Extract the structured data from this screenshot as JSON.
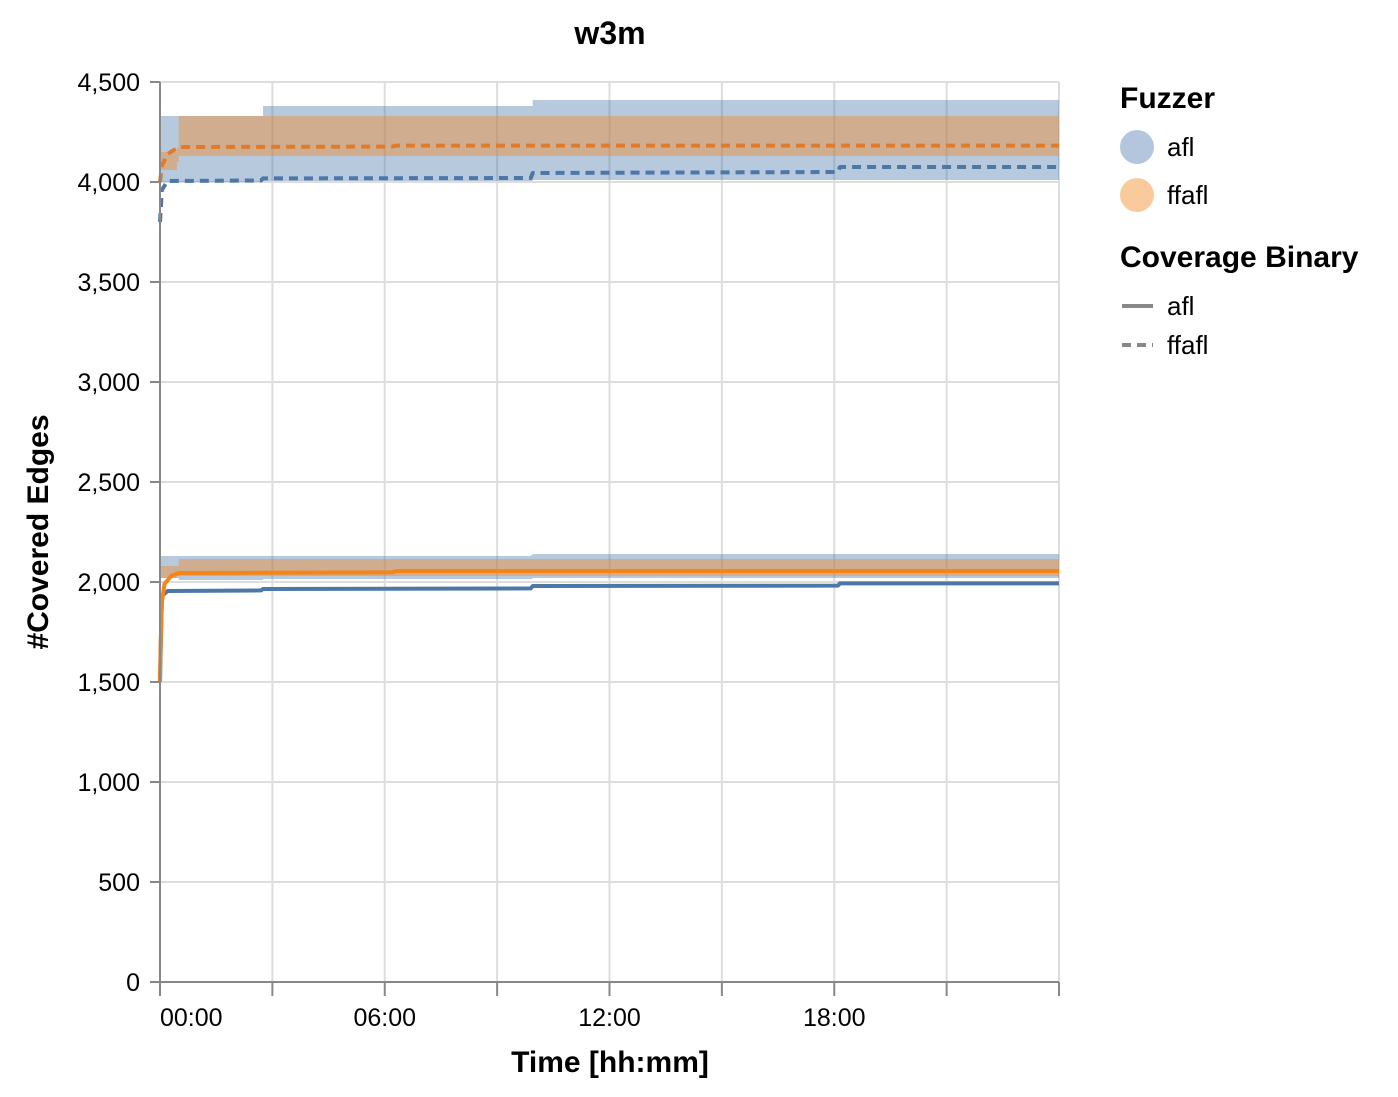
{
  "chart_data": {
    "type": "line",
    "title": "w3m",
    "xlabel": "Time [hh:mm]",
    "ylabel": "#Covered Edges",
    "x_unit": "hours",
    "xlim": [
      0,
      24
    ],
    "ylim": [
      0,
      4500
    ],
    "x_ticks": [
      {
        "value": 0,
        "label": "00:00"
      },
      {
        "value": 6,
        "label": "06:00"
      },
      {
        "value": 12,
        "label": "12:00"
      },
      {
        "value": 18,
        "label": "18:00"
      }
    ],
    "x_minor_ticks": [
      3,
      9,
      15,
      21
    ],
    "y_ticks": [
      {
        "value": 0,
        "label": "0"
      },
      {
        "value": 500,
        "label": "500"
      },
      {
        "value": 1000,
        "label": "1,000"
      },
      {
        "value": 1500,
        "label": "1,500"
      },
      {
        "value": 2000,
        "label": "2,000"
      },
      {
        "value": 2500,
        "label": "2,500"
      },
      {
        "value": 3000,
        "label": "3,000"
      },
      {
        "value": 3500,
        "label": "3,500"
      },
      {
        "value": 4000,
        "label": "4,000"
      },
      {
        "value": 4500,
        "label": "4,500"
      }
    ],
    "grid": true,
    "legend_position": "right",
    "legend": {
      "fuzzer_title": "Fuzzer",
      "fuzzer_items": [
        {
          "label": "afl",
          "color": "#b3c6dd"
        },
        {
          "label": "ffafl",
          "color": "#f9cb9c"
        }
      ],
      "binary_title": "Coverage Binary",
      "binary_items": [
        {
          "label": "afl",
          "dash": "solid"
        },
        {
          "label": "ffafl",
          "dash": "dashed"
        }
      ]
    },
    "series": [
      {
        "fuzzer": "afl",
        "binary": "afl",
        "line_color": "#4c78a8",
        "band_color": "#4c78a8",
        "points": [
          [
            0,
            1500
          ],
          [
            0.05,
            1930
          ],
          [
            0.2,
            1955
          ],
          [
            2.7,
            1958
          ],
          [
            2.75,
            1965
          ],
          [
            9.9,
            1968
          ],
          [
            9.95,
            1980
          ],
          [
            18.1,
            1982
          ],
          [
            18.15,
            1993
          ],
          [
            24,
            1993
          ]
        ],
        "band": [
          [
            0,
            2020,
            2130
          ],
          [
            0.5,
            2010,
            2130
          ],
          [
            2.7,
            2010,
            2130
          ],
          [
            2.75,
            2015,
            2130
          ],
          [
            9.9,
            2015,
            2135
          ],
          [
            9.95,
            2020,
            2140
          ],
          [
            24,
            2020,
            2145
          ]
        ]
      },
      {
        "fuzzer": "ffafl",
        "binary": "afl",
        "line_color": "#f58518",
        "band_color": "#f58518",
        "points": [
          [
            0,
            1500
          ],
          [
            0.02,
            1700
          ],
          [
            0.05,
            1900
          ],
          [
            0.12,
            1990
          ],
          [
            0.3,
            2030
          ],
          [
            0.5,
            2045
          ],
          [
            6.2,
            2048
          ],
          [
            6.3,
            2055
          ],
          [
            24,
            2055
          ]
        ],
        "band": [
          [
            0,
            2020,
            2080
          ],
          [
            0.45,
            2030,
            2080
          ],
          [
            0.5,
            2030,
            2115
          ],
          [
            24,
            2030,
            2115
          ]
        ]
      },
      {
        "fuzzer": "afl",
        "binary": "ffafl",
        "line_color": "#4c78a8",
        "band_color": "#4c78a8",
        "points": [
          [
            0,
            3800
          ],
          [
            0.05,
            3960
          ],
          [
            0.2,
            4005
          ],
          [
            2.7,
            4008
          ],
          [
            2.75,
            4018
          ],
          [
            9.9,
            4020
          ],
          [
            9.95,
            4045
          ],
          [
            18.1,
            4050
          ],
          [
            18.15,
            4075
          ],
          [
            24,
            4075
          ]
        ],
        "band": [
          [
            0,
            4000,
            4330
          ],
          [
            0.5,
            4000,
            4330
          ],
          [
            2.7,
            4000,
            4330
          ],
          [
            2.75,
            4005,
            4380
          ],
          [
            9.9,
            4005,
            4380
          ],
          [
            9.95,
            4010,
            4410
          ],
          [
            24,
            4010,
            4420
          ]
        ]
      },
      {
        "fuzzer": "ffafl",
        "binary": "ffafl",
        "line_color": "#e07b2c",
        "band_color": "#f58518",
        "points": [
          [
            0,
            4000
          ],
          [
            0.05,
            4080
          ],
          [
            0.2,
            4140
          ],
          [
            0.5,
            4175
          ],
          [
            6.2,
            4177
          ],
          [
            6.3,
            4182
          ],
          [
            24,
            4182
          ]
        ],
        "band": [
          [
            0,
            4060,
            4150
          ],
          [
            0.45,
            4100,
            4170
          ],
          [
            0.5,
            4130,
            4330
          ],
          [
            24,
            4130,
            4330
          ]
        ]
      }
    ]
  }
}
